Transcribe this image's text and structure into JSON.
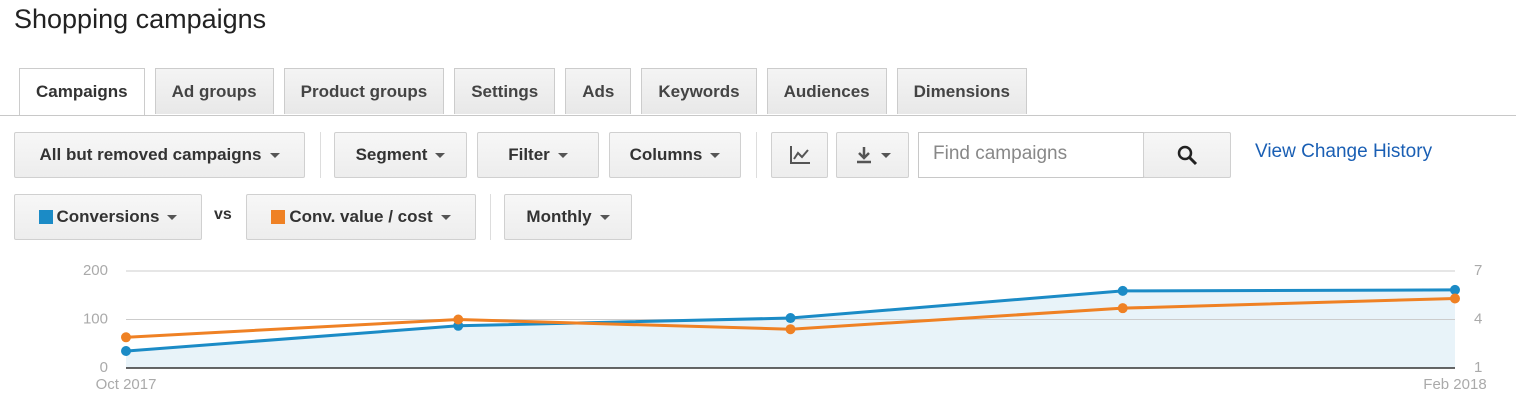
{
  "header": {
    "title": "Shopping campaigns"
  },
  "tabs": [
    "Campaigns",
    "Ad groups",
    "Product groups",
    "Settings",
    "Ads",
    "Keywords",
    "Audiences",
    "Dimensions"
  ],
  "toolbar": {
    "status_filter": "All but removed campaigns",
    "segment": "Segment",
    "filter": "Filter",
    "columns": "Columns",
    "search_placeholder": "Find campaigns",
    "change_history": "View Change History"
  },
  "metrics": {
    "vs": "vs",
    "period": "Monthly"
  },
  "chart_data": {
    "type": "line",
    "categories": [
      "Oct 2017",
      null,
      null,
      null,
      "Feb 2018"
    ],
    "series": [
      {
        "name": "Conversions",
        "color": "#1b8bc6",
        "values": [
          35,
          87,
          103,
          159,
          161
        ]
      },
      {
        "name": "Conv. value / cost",
        "color": "#ef8124",
        "axis": "y2",
        "values": [
          2.9,
          4.0,
          3.4,
          4.7,
          5.3
        ]
      }
    ],
    "ylim": [
      0,
      200
    ],
    "yticks": [
      0,
      100,
      200
    ],
    "y2lim": [
      1,
      7
    ],
    "y2ticks": [
      1,
      4,
      7
    ],
    "grid": true
  }
}
